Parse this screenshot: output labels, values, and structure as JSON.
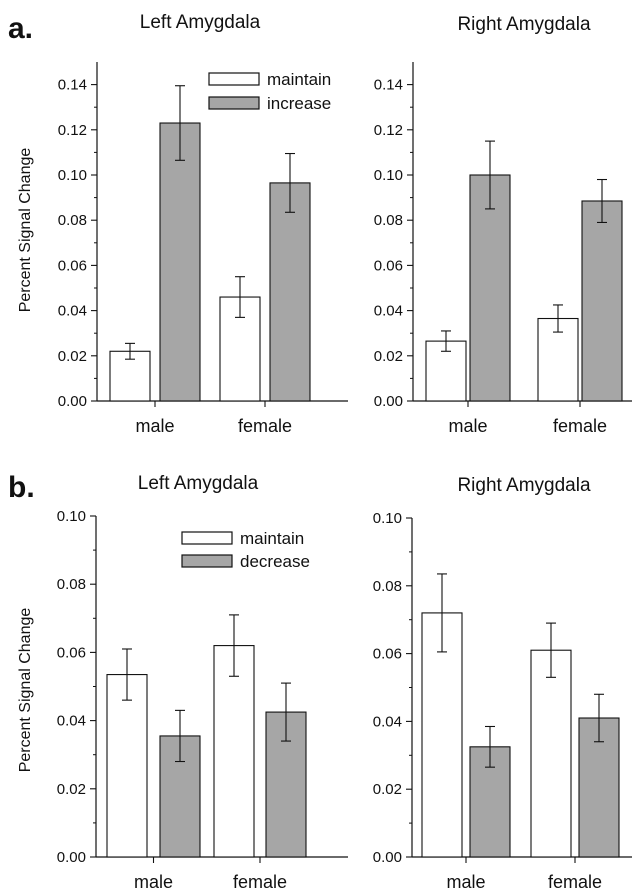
{
  "panels": [
    {
      "label": "a.",
      "ylabel": "Percent Signal Change",
      "legend": [
        "maintain",
        "increase"
      ]
    },
    {
      "label": "b.",
      "ylabel": "Percent Signal Change",
      "legend": [
        "maintain",
        "decrease"
      ]
    }
  ],
  "colors": {
    "maintain": "#ffffff",
    "change": "#a6a6a6",
    "stroke": "#111111"
  },
  "chart_data": [
    {
      "type": "bar",
      "title": "Left Amygdala",
      "categories": [
        "male",
        "female"
      ],
      "series": [
        {
          "name": "maintain",
          "values": [
            0.022,
            0.046
          ],
          "errors": [
            0.0035,
            0.009
          ]
        },
        {
          "name": "increase",
          "values": [
            0.123,
            0.0965
          ],
          "errors": [
            0.0165,
            0.013
          ]
        }
      ],
      "ylim": [
        0,
        0.15
      ],
      "yticks": [
        "0.00",
        "0.02",
        "0.04",
        "0.06",
        "0.08",
        "0.10",
        "0.12",
        "0.14"
      ],
      "legend_position": "top-right",
      "grid": false
    },
    {
      "type": "bar",
      "title": "Right Amygdala",
      "categories": [
        "male",
        "female"
      ],
      "series": [
        {
          "name": "maintain",
          "values": [
            0.0265,
            0.0365
          ],
          "errors": [
            0.0045,
            0.006
          ]
        },
        {
          "name": "increase",
          "values": [
            0.1,
            0.0885
          ],
          "errors": [
            0.015,
            0.0095
          ]
        }
      ],
      "ylim": [
        0,
        0.15
      ],
      "yticks": [
        "0.00",
        "0.02",
        "0.04",
        "0.06",
        "0.08",
        "0.10",
        "0.12",
        "0.14"
      ],
      "grid": false
    },
    {
      "type": "bar",
      "title": "Left Amygdala",
      "categories": [
        "male",
        "female"
      ],
      "series": [
        {
          "name": "maintain",
          "values": [
            0.0535,
            0.062
          ],
          "errors": [
            0.0075,
            0.009
          ]
        },
        {
          "name": "decrease",
          "values": [
            0.0355,
            0.0425
          ],
          "errors": [
            0.0075,
            0.0085
          ]
        }
      ],
      "ylim": [
        0,
        0.1
      ],
      "yticks": [
        "0.00",
        "0.02",
        "0.04",
        "0.06",
        "0.08",
        "0.10"
      ],
      "legend_position": "top-right",
      "grid": false
    },
    {
      "type": "bar",
      "title": "Right Amygdala",
      "categories": [
        "male",
        "female"
      ],
      "series": [
        {
          "name": "maintain",
          "values": [
            0.072,
            0.061
          ],
          "errors": [
            0.0115,
            0.008
          ]
        },
        {
          "name": "decrease",
          "values": [
            0.0325,
            0.041
          ],
          "errors": [
            0.006,
            0.007
          ]
        }
      ],
      "ylim": [
        0,
        0.1
      ],
      "yticks": [
        "0.00",
        "0.02",
        "0.04",
        "0.06",
        "0.08",
        "0.10"
      ],
      "grid": false
    }
  ]
}
